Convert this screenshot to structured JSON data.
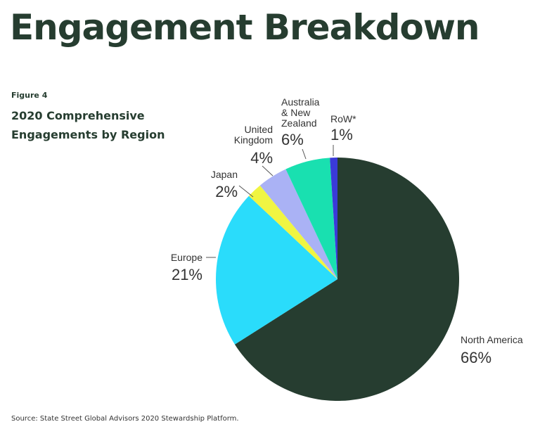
{
  "header": {
    "title": "Engagement Breakdown",
    "figure": "Figure 4",
    "subtitle": "2020 Comprehensive\nEngagements by Region"
  },
  "chart_data": {
    "type": "pie",
    "categories": [
      "North America",
      "Europe",
      "Japan",
      "United\nKingdom",
      "Australia\n& New\nZealand",
      "RoW*"
    ],
    "values": [
      66,
      21,
      2,
      4,
      6,
      1
    ],
    "value_labels": [
      "66%",
      "21%",
      "2%",
      "4%",
      "6%",
      "1%"
    ],
    "colors": [
      "#263d30",
      "#2adcfb",
      "#f0f542",
      "#aab2f5",
      "#19e0b0",
      "#3a3ad8"
    ]
  },
  "footer": {
    "source": "Source: State Street Global Advisors 2020 Stewardship Platform."
  }
}
